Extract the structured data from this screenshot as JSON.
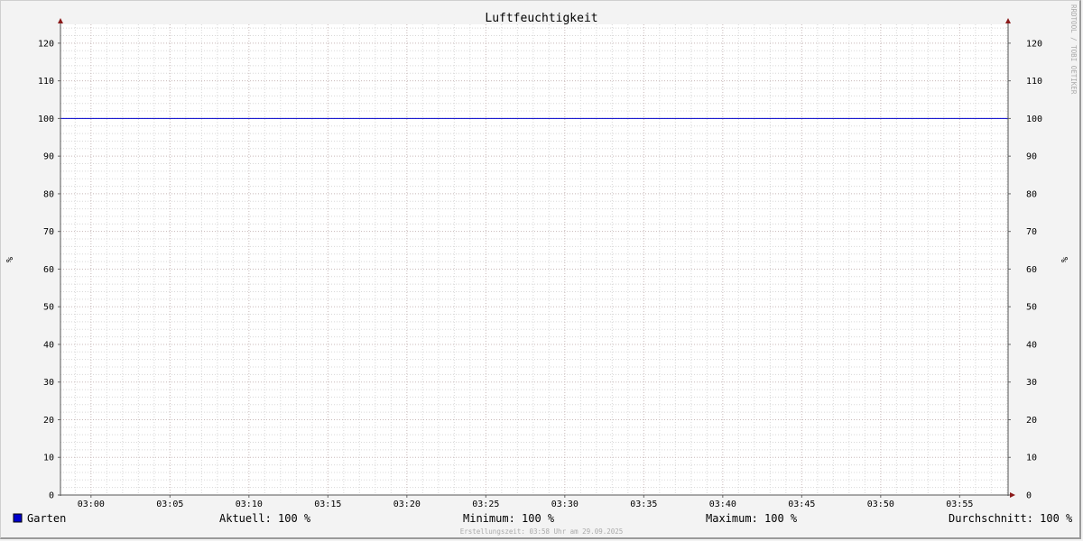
{
  "chart_data": {
    "type": "line",
    "title": "Luftfeuchtigkeit",
    "ylabel": "%",
    "ylabel_right": "%",
    "ylim": [
      0,
      125
    ],
    "yticks": [
      0,
      10,
      20,
      30,
      40,
      50,
      60,
      70,
      80,
      90,
      100,
      110,
      120
    ],
    "xlim": [
      "02:58",
      "03:58"
    ],
    "xticks": [
      "03:00",
      "03:05",
      "03:10",
      "03:15",
      "03:20",
      "03:25",
      "03:30",
      "03:35",
      "03:40",
      "03:45",
      "03:50",
      "03:55"
    ],
    "grid": true,
    "series": [
      {
        "name": "Garten",
        "color": "#0000cc",
        "x": [
          "02:58",
          "03:58"
        ],
        "y": [
          100,
          100
        ]
      }
    ],
    "legend": {
      "entry": "Garten",
      "aktuell": "Aktuell: 100 %",
      "minimum": "Minimum: 100 %",
      "maximum": "Maximum: 100 %",
      "durchschnitt": "Durchschnitt: 100 %"
    },
    "footer": "Erstellungszeit: 03:58 Uhr am 29.09.2025",
    "watermark": "RRDTOOL / TOBI OETIKER"
  }
}
